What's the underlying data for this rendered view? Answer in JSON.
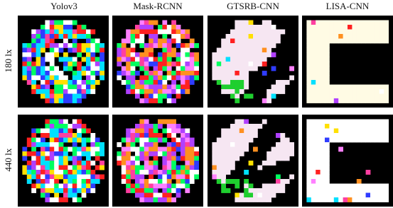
{
  "columns": [
    "Yolov3",
    "Mask-RCNN",
    "GTSRB-CNN",
    "LISA-CNN"
  ],
  "rows": [
    "180 lx",
    "440 lx"
  ]
}
